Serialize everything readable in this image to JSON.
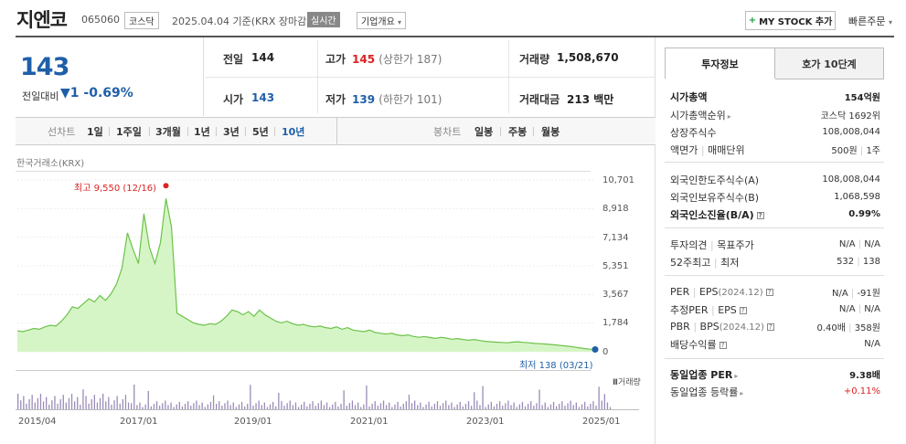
{
  "header": {
    "name": "지엔코",
    "code": "065060",
    "market": "코스닥",
    "date": "2025.04.04",
    "basis": "기준(KRX 장마감)",
    "realtime": "실시간",
    "company_info": "기업개요",
    "my_stock": "MY STOCK 추가",
    "quick_order": "빠른주문"
  },
  "price": {
    "current": "143",
    "change_label": "전일대비",
    "change_arrow": "▼",
    "change_value": "1",
    "change_pct": "-0.69%"
  },
  "quote": {
    "prev_label": "전일",
    "prev": "144",
    "high_label": "고가",
    "high": "145",
    "upper_limit": "(상한가 187)",
    "volume_label": "거래량",
    "volume": "1,508,670",
    "open_label": "시가",
    "open": "143",
    "low_label": "저가",
    "low": "139",
    "lower_limit": "(하한가 101)",
    "amount_label": "거래대금",
    "amount": "213 백만"
  },
  "tabs": {
    "line_chart": "선차트",
    "periods": [
      "1일",
      "1주일",
      "3개월",
      "1년",
      "3년",
      "5년",
      "10년"
    ],
    "candle_chart": "봉차트",
    "candle_periods": [
      "일봉",
      "주봉",
      "월봉"
    ]
  },
  "chart_data": {
    "type": "area",
    "source": "한국거래소(KRX)",
    "y_ticks": [
      "10,701",
      "8,918",
      "7,134",
      "5,351",
      "3,567",
      "1,784",
      "0"
    ],
    "ylim": [
      0,
      10701
    ],
    "x_ticks": [
      "2015/04",
      "2017/01",
      "2019/01",
      "2021/01",
      "2023/01",
      "2025/01"
    ],
    "high_label": "최고 9,550 (12/16)",
    "low_label": "최저 138 (03/21)",
    "volume_label": "거래량",
    "series": [
      {
        "values": [
          1300,
          1250,
          1350,
          1450,
          1400,
          1550,
          1650,
          1600,
          1900,
          2300,
          2800,
          2700,
          3000,
          3300,
          3100,
          3500,
          3200,
          3600,
          4200,
          5200,
          7400,
          6400,
          5500,
          8600,
          6500,
          5500,
          6800,
          9550,
          7800,
          2400,
          2200,
          2000,
          1800,
          1700,
          1650,
          1750,
          1700,
          1900,
          2200,
          2600,
          2500,
          2300,
          2500,
          2200,
          2600,
          2300,
          2100,
          1900,
          1800,
          1900,
          1750,
          1650,
          1700,
          1600,
          1550,
          1600,
          1500,
          1450,
          1550,
          1400,
          1500,
          1350,
          1300,
          1250,
          1350,
          1200,
          1150,
          1100,
          1150,
          1050,
          1000,
          1050,
          950,
          900,
          950,
          880,
          830,
          900,
          850,
          780,
          820,
          760,
          720,
          760,
          700,
          650,
          620,
          600,
          580,
          560,
          600,
          620,
          580,
          560,
          520,
          500,
          480,
          450,
          420,
          380,
          350,
          300,
          250,
          200,
          160,
          143
        ]
      }
    ]
  },
  "invest": {
    "tab_info": "투자정보",
    "tab_hoga": "호가 10단계",
    "mcap_label": "시가총액",
    "mcap": "154억원",
    "rank_label": "시가총액순위",
    "rank": "코스닥 1692위",
    "shares_label": "상장주식수",
    "shares": "108,008,044",
    "par_label": "액면가",
    "trade_unit_label": "매매단위",
    "par": "500원",
    "trade_unit": "1주",
    "fl_limit_label": "외국인한도주식수(A)",
    "fl_limit": "108,008,044",
    "fl_hold_label": "외국인보유주식수(B)",
    "fl_hold": "1,068,598",
    "fl_ratio_label": "외국인소진율(B/A)",
    "fl_ratio": "0.99%",
    "opinion_label": "투자의견",
    "target_label": "목표주가",
    "opinion": "N/A",
    "target": "N/A",
    "w52_label": "52주최고",
    "w52_low_label": "최저",
    "w52_high": "532",
    "w52_low": "138",
    "per_label": "PER",
    "eps_label": "EPS",
    "eps_year": "(2024.12)",
    "per": "N/A",
    "eps": "-91원",
    "eper_label": "추정PER",
    "eeps_label": "EPS",
    "eper": "N/A",
    "eeps": "N/A",
    "pbr_label": "PBR",
    "bps_label": "BPS",
    "bps_year": "(2024.12)",
    "pbr": "0.40배",
    "bps": "358원",
    "div_label": "배당수익률",
    "div": "N/A",
    "sector_per_label": "동일업종 PER",
    "sector_per": "9.38배",
    "sector_chg_label": "동일업종 등락률",
    "sector_chg": "+0.11%"
  }
}
